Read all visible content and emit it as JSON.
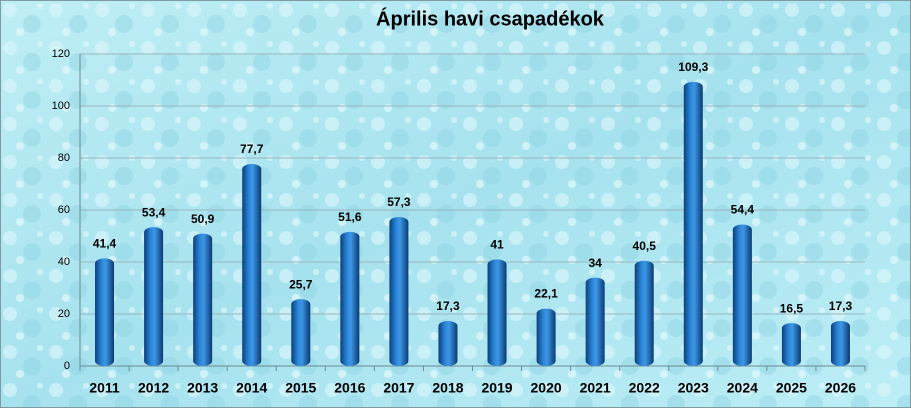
{
  "chart_data": {
    "type": "bar",
    "title": "Április havi csapadékok",
    "categories": [
      "2011",
      "2012",
      "2013",
      "2014",
      "2015",
      "2016",
      "2017",
      "2018",
      "2019",
      "2020",
      "2021",
      "2022",
      "2023",
      "2024",
      "2025",
      "2026"
    ],
    "values": [
      41.4,
      53.4,
      50.9,
      77.7,
      25.7,
      51.6,
      57.3,
      17.3,
      41,
      22.1,
      34,
      40.5,
      109.3,
      54.4,
      16.5,
      17.3
    ],
    "value_labels": [
      "41,4",
      "53,4",
      "50,9",
      "77,7",
      "25,7",
      "51,6",
      "57,3",
      "17,3",
      "41",
      "22,1",
      "34",
      "40,5",
      "109,3",
      "54,4",
      "16,5",
      "17,3"
    ],
    "color": "#1565b8",
    "ylim": [
      0,
      120
    ],
    "yticks": [
      0,
      20,
      40,
      60,
      80,
      100,
      120
    ],
    "grid": true
  }
}
